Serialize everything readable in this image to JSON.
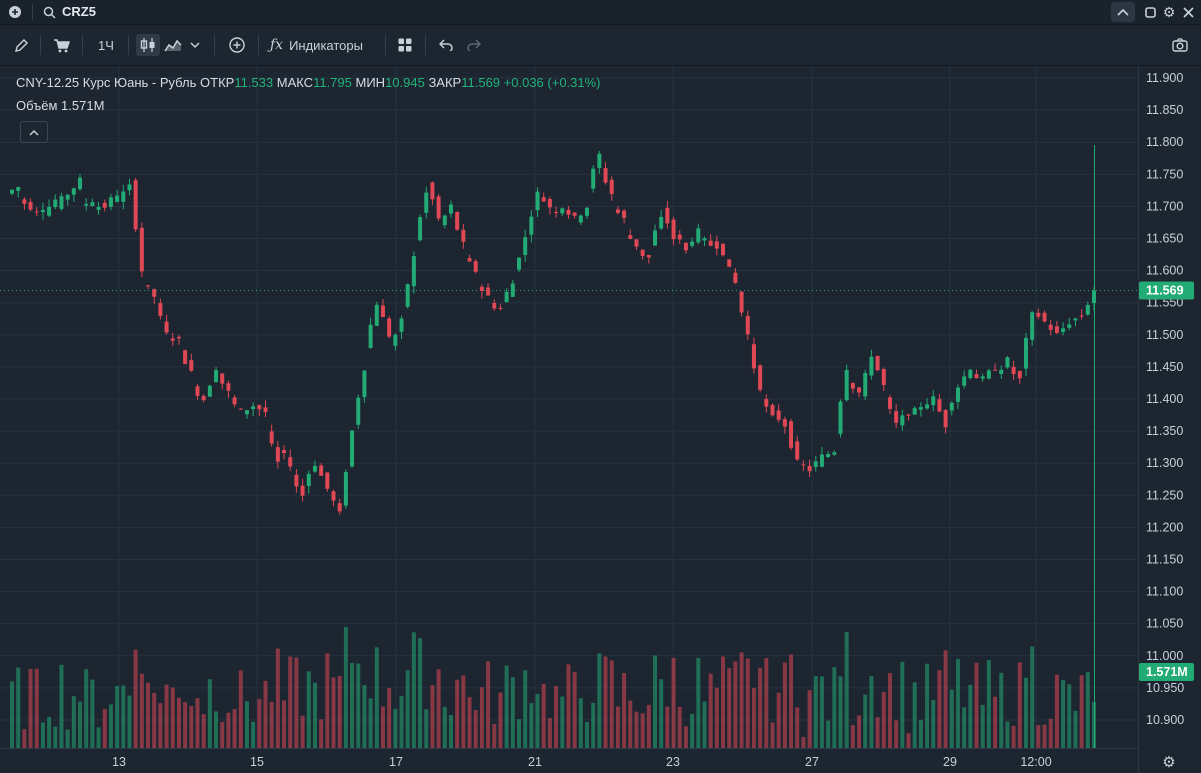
{
  "topbar": {
    "ticker": "CRZ5"
  },
  "toolbar": {
    "interval": "1Ч",
    "indicators_label": "Индикаторы"
  },
  "legend": {
    "instrument": "CNY-12.25 Курс Юань - Рубль",
    "open_label": "ОТКР",
    "open": "11.533",
    "high_label": "МАКС",
    "high": "11.795",
    "low_label": "МИН",
    "low": "10.945",
    "close_label": "ЗАКР",
    "close": "11.569",
    "change": "+0.036 (+0.31%)",
    "volume_label": "Объём",
    "volume": "1.571M"
  },
  "colors": {
    "up": "#22ab74",
    "down": "#e04856",
    "background": "#1c2530",
    "grid": "#273240"
  },
  "chart_data": {
    "type": "candlestick",
    "y_ticks": [
      "11.900",
      "11.850",
      "11.800",
      "11.750",
      "11.700",
      "11.650",
      "11.600",
      "11.550",
      "11.500",
      "11.450",
      "11.400",
      "11.350",
      "11.300",
      "11.250",
      "11.200",
      "11.150",
      "11.100",
      "11.050",
      "11.000",
      "10.950",
      "10.900"
    ],
    "ylim": [
      10.875,
      11.925
    ],
    "x_ticks": [
      "13",
      "15",
      "17",
      "21",
      "23",
      "27",
      "29",
      "12:00"
    ],
    "last_price": "11.569",
    "last_volume": "1.571M",
    "price_path": [
      [
        11.72,
        11.73
      ],
      [
        11.71,
        11.7
      ],
      [
        11.69,
        11.7
      ],
      [
        11.69,
        11.71
      ],
      [
        11.7,
        11.72
      ],
      [
        11.72,
        11.74
      ],
      [
        11.7,
        11.71
      ],
      [
        11.7,
        11.7
      ],
      [
        11.7,
        11.72
      ],
      [
        11.71,
        11.73
      ],
      [
        11.74,
        11.6
      ],
      [
        11.58,
        11.56
      ],
      [
        11.55,
        11.5
      ],
      [
        11.5,
        11.49
      ],
      [
        11.48,
        11.44
      ],
      [
        11.42,
        11.4
      ],
      [
        11.4,
        11.45
      ],
      [
        11.44,
        11.41
      ],
      [
        11.4,
        11.38
      ],
      [
        11.38,
        11.39
      ],
      [
        11.39,
        11.38
      ],
      [
        11.35,
        11.3
      ],
      [
        11.32,
        11.3
      ],
      [
        11.28,
        11.25
      ],
      [
        11.27,
        11.3
      ],
      [
        11.3,
        11.26
      ],
      [
        11.26,
        11.22
      ],
      [
        11.23,
        11.35
      ],
      [
        11.36,
        11.45
      ],
      [
        11.48,
        11.55
      ],
      [
        11.55,
        11.5
      ],
      [
        11.48,
        11.52
      ],
      [
        11.54,
        11.62
      ],
      [
        11.65,
        11.72
      ],
      [
        11.74,
        11.68
      ],
      [
        11.67,
        11.7
      ],
      [
        11.69,
        11.64
      ],
      [
        11.62,
        11.6
      ],
      [
        11.58,
        11.56
      ],
      [
        11.55,
        11.54
      ],
      [
        11.55,
        11.58
      ],
      [
        11.6,
        11.65
      ],
      [
        11.66,
        11.72
      ],
      [
        11.72,
        11.7
      ],
      [
        11.69,
        11.7
      ],
      [
        11.7,
        11.68
      ],
      [
        11.68,
        11.7
      ],
      [
        11.73,
        11.78
      ],
      [
        11.76,
        11.72
      ],
      [
        11.7,
        11.68
      ],
      [
        11.66,
        11.64
      ],
      [
        11.63,
        11.62
      ],
      [
        11.64,
        11.68
      ],
      [
        11.7,
        11.65
      ],
      [
        11.66,
        11.63
      ],
      [
        11.64,
        11.66
      ],
      [
        11.65,
        11.64
      ],
      [
        11.65,
        11.63
      ],
      [
        11.62,
        11.58
      ],
      [
        11.57,
        11.5
      ],
      [
        11.48,
        11.42
      ],
      [
        11.4,
        11.37
      ],
      [
        11.38,
        11.36
      ],
      [
        11.36,
        11.3
      ],
      [
        11.3,
        11.29
      ],
      [
        11.29,
        11.31
      ],
      [
        11.31,
        11.32
      ],
      [
        11.35,
        11.45
      ],
      [
        11.43,
        11.41
      ],
      [
        11.4,
        11.47
      ],
      [
        11.47,
        11.42
      ],
      [
        11.4,
        11.36
      ],
      [
        11.36,
        11.38
      ],
      [
        11.37,
        11.39
      ],
      [
        11.39,
        11.4
      ],
      [
        11.4,
        11.36
      ],
      [
        11.38,
        11.42
      ],
      [
        11.42,
        11.45
      ],
      [
        11.44,
        11.43
      ],
      [
        11.43,
        11.45
      ],
      [
        11.44,
        11.46
      ],
      [
        11.45,
        11.43
      ],
      [
        11.45,
        11.53
      ],
      [
        11.54,
        11.52
      ],
      [
        11.52,
        11.5
      ],
      [
        11.5,
        11.52
      ],
      [
        11.52,
        11.53
      ],
      [
        11.53,
        11.569
      ]
    ]
  }
}
